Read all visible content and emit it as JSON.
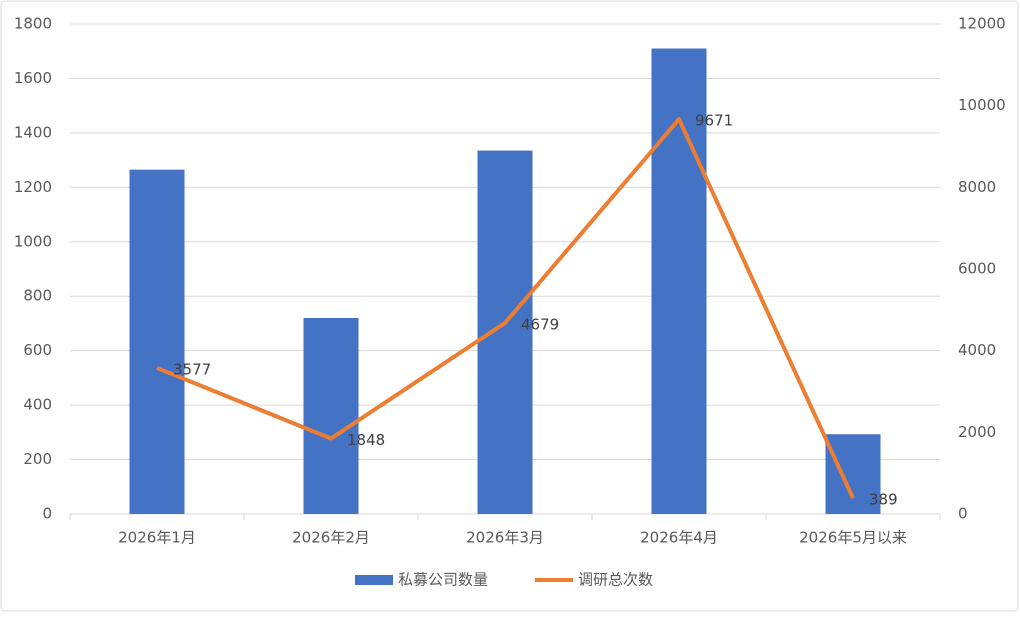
{
  "chart_data": {
    "type": "bar",
    "categories": [
      "2026年1月",
      "2026年2月",
      "2026年3月",
      "2026年4月",
      "2026年5月以来"
    ],
    "series": [
      {
        "name": "私募公司数量",
        "color": "#4472c4",
        "type": "bar",
        "values": [
          1265,
          720,
          1335,
          1710,
          293
        ]
      },
      {
        "name": "调研总次数",
        "color": "#ed7d31",
        "type": "line",
        "axis": "y2",
        "values": [
          3577,
          1848,
          4679,
          9671,
          389
        ]
      }
    ],
    "ylim": [
      0,
      1800
    ],
    "yticks": [
      0,
      200,
      400,
      600,
      800,
      1000,
      1200,
      1400,
      1600,
      1800
    ],
    "y2lim": [
      0,
      12000
    ],
    "y2ticks": [
      0,
      2000,
      4000,
      6000,
      8000,
      10000,
      12000
    ],
    "grid": true,
    "legend": "bottom"
  }
}
